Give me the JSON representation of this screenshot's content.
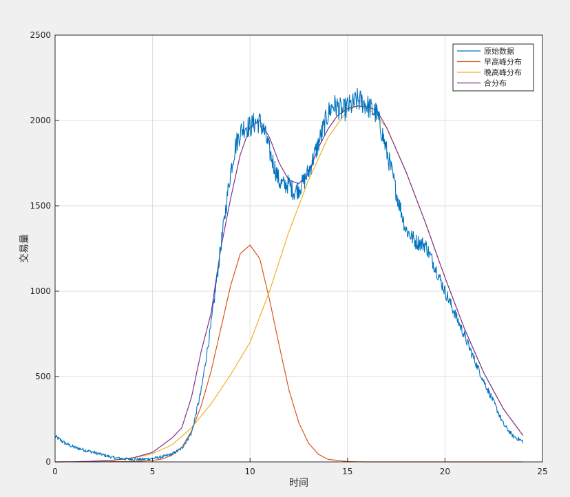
{
  "chart_data": {
    "type": "line",
    "xlabel": "时间",
    "ylabel": "交易量",
    "xlim": [
      0,
      25
    ],
    "ylim": [
      0,
      2500
    ],
    "xticks": [
      0,
      5,
      10,
      15,
      20,
      25
    ],
    "yticks": [
      0,
      500,
      1000,
      1500,
      2000,
      2500
    ],
    "grid": true,
    "legend_position": "top-right",
    "series": [
      {
        "name": "原始数据",
        "color": "#0072bd",
        "style": "noisy",
        "x": [
          0,
          0.5,
          1,
          1.5,
          2,
          2.5,
          3,
          3.5,
          4,
          4.5,
          5,
          5.5,
          6,
          6.5,
          7,
          7.5,
          8,
          8.5,
          9,
          9.25,
          9.5,
          9.75,
          10,
          10.25,
          10.5,
          10.75,
          11,
          11.25,
          11.5,
          11.75,
          12,
          12.25,
          12.5,
          12.75,
          13,
          13.25,
          13.5,
          13.75,
          14,
          14.25,
          14.5,
          14.75,
          15,
          15.25,
          15.5,
          15.75,
          16,
          16.25,
          16.5,
          16.75,
          17,
          17.25,
          17.5,
          17.75,
          18,
          18.5,
          19,
          19.5,
          20,
          20.5,
          21,
          21.5,
          22,
          22.5,
          23,
          23.5,
          24
        ],
        "values": [
          150,
          110,
          85,
          70,
          55,
          40,
          25,
          18,
          15,
          15,
          20,
          30,
          45,
          80,
          170,
          420,
          800,
          1260,
          1700,
          1850,
          1930,
          1970,
          1960,
          1990,
          1990,
          1930,
          1820,
          1730,
          1640,
          1620,
          1630,
          1580,
          1600,
          1640,
          1700,
          1780,
          1860,
          1950,
          2040,
          2090,
          2080,
          2050,
          2080,
          2090,
          2120,
          2110,
          2090,
          2060,
          2040,
          1940,
          1820,
          1710,
          1580,
          1470,
          1360,
          1290,
          1270,
          1140,
          1000,
          870,
          740,
          600,
          470,
          350,
          220,
          150,
          120
        ]
      },
      {
        "name": "早高峰分布",
        "color": "#d95319",
        "style": "smooth",
        "x": [
          0,
          4,
          5,
          5.5,
          6,
          6.5,
          7,
          7.5,
          8,
          8.5,
          9,
          9.5,
          10,
          10.5,
          11,
          11.5,
          12,
          12.5,
          13,
          13.5,
          14,
          15,
          16,
          20,
          24
        ],
        "values": [
          0,
          2,
          8,
          17,
          40,
          85,
          180,
          330,
          530,
          780,
          1030,
          1220,
          1270,
          1190,
          950,
          680,
          420,
          230,
          110,
          45,
          15,
          2,
          0,
          0,
          0
        ]
      },
      {
        "name": "晚高峰分布",
        "color": "#edb120",
        "style": "smooth",
        "x": [
          0,
          1,
          2,
          3,
          4,
          5,
          6,
          7,
          8,
          9,
          10,
          11,
          12,
          13,
          14,
          15,
          15.5,
          16,
          17,
          18,
          19,
          20,
          21,
          22,
          23,
          24
        ],
        "values": [
          0,
          1,
          4,
          10,
          22,
          48,
          100,
          200,
          340,
          510,
          700,
          1000,
          1350,
          1650,
          1900,
          2060,
          2085,
          2080,
          1960,
          1700,
          1400,
          1080,
          780,
          520,
          310,
          155
        ]
      },
      {
        "name": "合分布",
        "color": "#7e2f8e",
        "style": "smooth",
        "x": [
          0,
          1,
          2,
          3,
          4,
          5,
          6,
          6.5,
          7,
          7.5,
          8,
          8.5,
          9,
          9.5,
          10,
          10.5,
          11,
          11.5,
          12,
          12.5,
          13,
          13.5,
          14,
          14.5,
          15,
          15.5,
          16,
          16.5,
          17,
          18,
          19,
          20,
          21,
          22,
          23,
          24
        ],
        "values": [
          0,
          1,
          4,
          10,
          24,
          56,
          140,
          200,
          380,
          650,
          870,
          1250,
          1540,
          1800,
          1960,
          2000,
          1900,
          1750,
          1650,
          1630,
          1690,
          1840,
          1950,
          2030,
          2070,
          2085,
          2080,
          2060,
          1960,
          1700,
          1400,
          1080,
          780,
          520,
          310,
          155
        ]
      }
    ]
  }
}
